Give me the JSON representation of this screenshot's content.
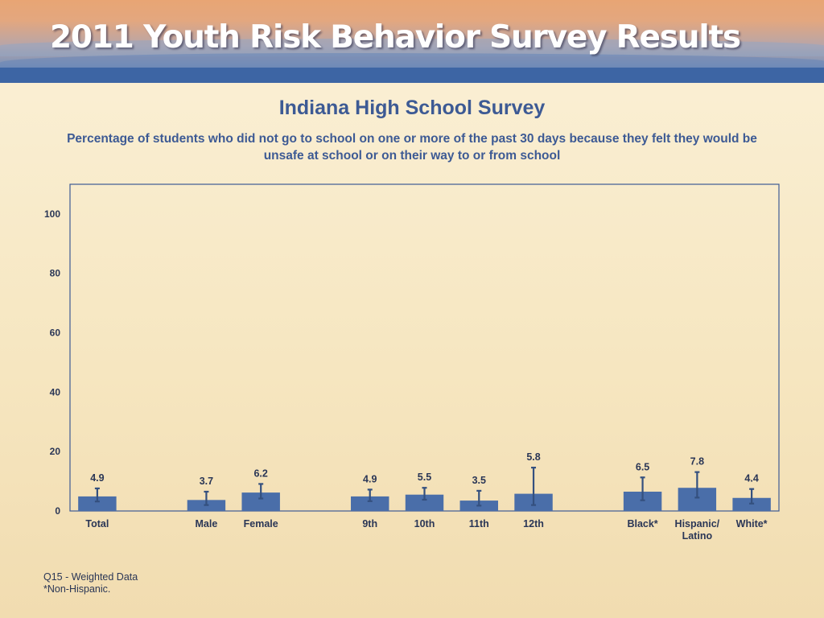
{
  "banner": {
    "title": "2011 Youth Risk Behavior Survey Results"
  },
  "chart_data": {
    "type": "bar",
    "title": "Indiana High School Survey",
    "subtitle": "Percentage of students who did not go to school on one or more of the past 30 days because they felt they would be unsafe at school or on their way to or from school",
    "xlabel": "",
    "ylabel": "",
    "ylim": [
      0,
      110
    ],
    "yticks": [
      0,
      20,
      40,
      60,
      80,
      100
    ],
    "grid": false,
    "categories": [
      "Total",
      "Male",
      "Female",
      "9th",
      "10th",
      "11th",
      "12th",
      "Black*",
      "Hispanic/ Latino",
      "White*"
    ],
    "groups": [
      [
        "Total"
      ],
      [
        "Male",
        "Female"
      ],
      [
        "9th",
        "10th",
        "11th",
        "12th"
      ],
      [
        "Black*",
        "Hispanic/ Latino",
        "White*"
      ]
    ],
    "values": [
      4.9,
      3.7,
      6.2,
      4.9,
      5.5,
      3.5,
      5.8,
      6.5,
      7.8,
      4.4
    ],
    "value_labels": [
      "4.9",
      "3.7",
      "6.2",
      "4.9",
      "5.5",
      "3.5",
      "5.8",
      "6.5",
      "7.8",
      "4.4"
    ],
    "error_low": [
      3.2,
      2.0,
      4.2,
      3.3,
      3.8,
      1.8,
      2.0,
      3.6,
      4.5,
      2.5
    ],
    "error_high": [
      7.6,
      6.5,
      9.1,
      7.2,
      7.8,
      6.8,
      14.6,
      11.3,
      13.1,
      7.4
    ],
    "bar_color": "#4a6ea9",
    "error_color": "#34507f"
  },
  "footnotes": [
    "Q15 - Weighted Data",
    "*Non-Hispanic."
  ]
}
